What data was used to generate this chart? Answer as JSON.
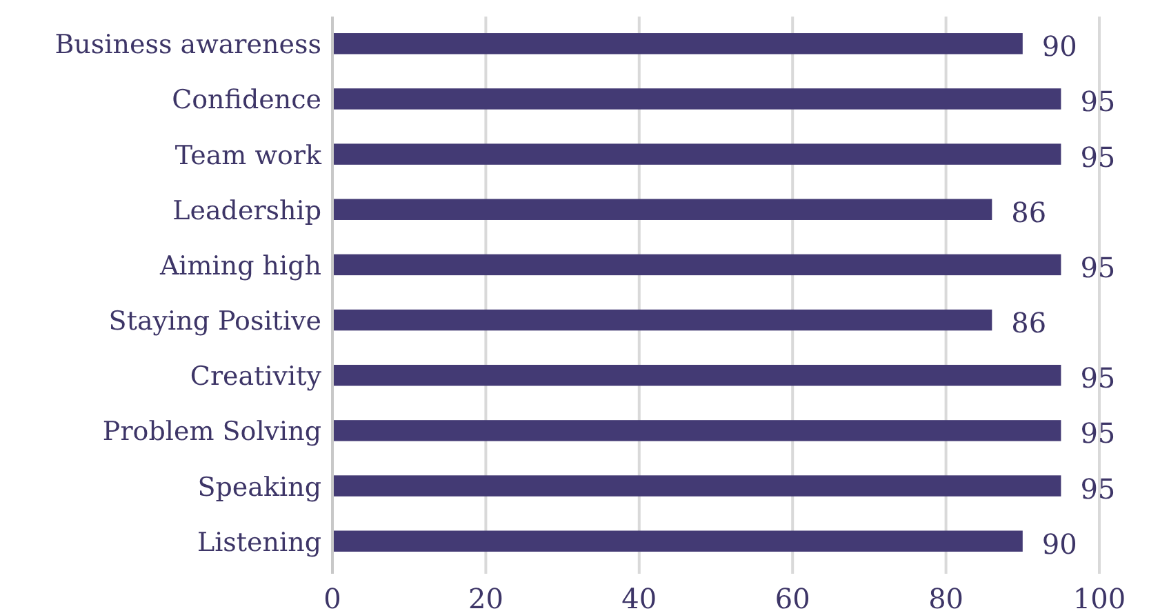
{
  "chart_data": {
    "type": "bar",
    "orientation": "horizontal",
    "categories": [
      "Business awareness",
      "Confidence",
      "Team work",
      "Leadership",
      "Aiming high",
      "Staying Positive",
      "Creativity",
      "Problem Solving",
      "Speaking",
      "Listening"
    ],
    "values": [
      90,
      95,
      95,
      86,
      95,
      86,
      95,
      95,
      95,
      90
    ],
    "color": "#433a74",
    "xlim": [
      0,
      100
    ],
    "xticks": [
      0,
      20,
      40,
      60,
      80,
      100
    ],
    "grid": "x",
    "data_labels": true
  }
}
